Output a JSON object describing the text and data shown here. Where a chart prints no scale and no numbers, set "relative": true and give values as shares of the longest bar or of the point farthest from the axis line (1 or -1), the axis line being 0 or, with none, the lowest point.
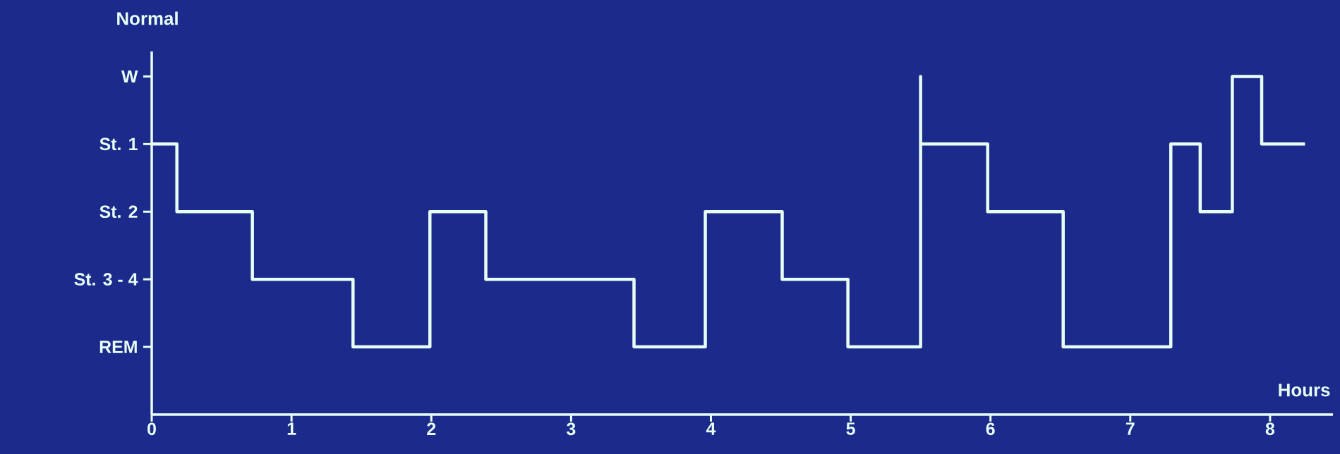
{
  "chart_data": {
    "type": "step",
    "title": "Normal",
    "xlabel": "Hours",
    "relative": true,
    "x": [
      0,
      0.18,
      0.72,
      1.44,
      1.99,
      2.39,
      3.45,
      3.96,
      4.51,
      4.98,
      5.5,
      5.5,
      5.98,
      6.52,
      7.29,
      7.5,
      7.73,
      7.94,
      8.25
    ],
    "values": [
      0.8,
      0.6,
      0.4,
      0.2,
      0.6,
      0.4,
      0.2,
      0.6,
      0.4,
      0.2,
      1,
      0.8,
      0.6,
      0.2,
      0.8,
      0.6,
      1,
      0.8,
      0.8
    ],
    "color": "#e8fff4",
    "xlim": [
      0,
      8.45
    ],
    "xticks": [
      0,
      1,
      2,
      3,
      4,
      5,
      6,
      7,
      8
    ],
    "annotations": [
      "REM",
      "St. 3 - 4",
      "St. 2",
      "St. 1",
      "W"
    ]
  }
}
